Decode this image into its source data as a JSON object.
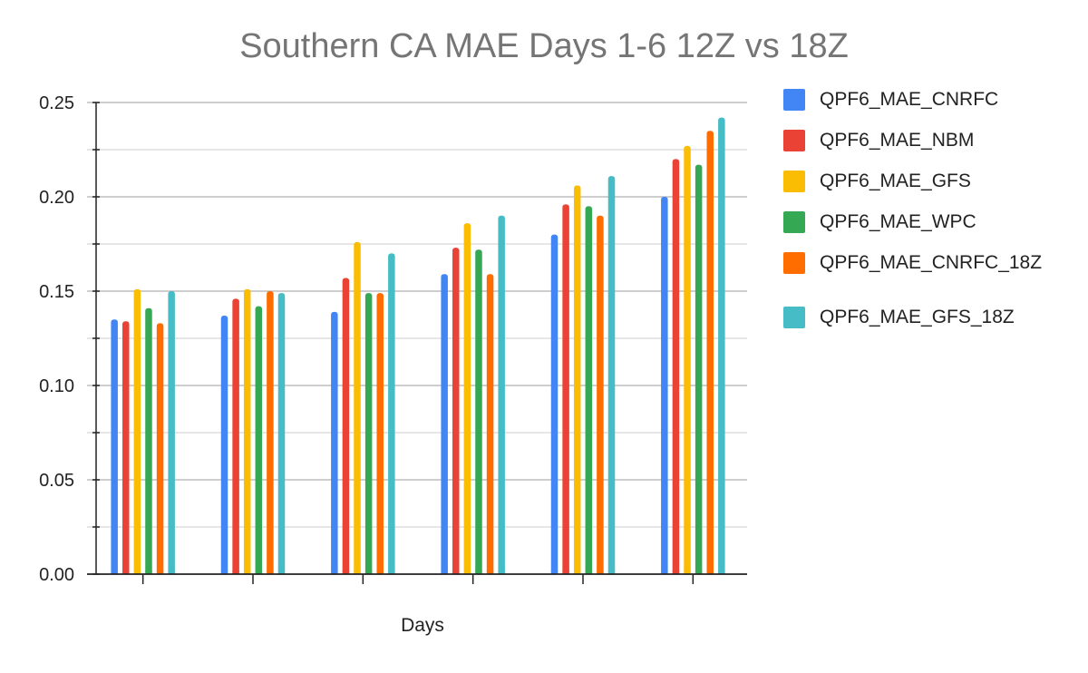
{
  "chart_data": {
    "type": "bar",
    "title": "Southern CA MAE Days 1-6 12Z vs 18Z",
    "xlabel": "Days",
    "ylabel": "",
    "ylim": [
      0,
      0.25
    ],
    "yticks": [
      "0.00",
      "0.05",
      "0.10",
      "0.15",
      "0.20",
      "0.25"
    ],
    "categories": [
      "",
      "",
      "",
      "",
      "",
      ""
    ],
    "grid": true,
    "legend_position": "right",
    "series": [
      {
        "name": "QPF6_MAE_CNRFC",
        "color": "#4285f4",
        "values": [
          0.135,
          0.137,
          0.139,
          0.159,
          0.18,
          0.2
        ]
      },
      {
        "name": "QPF6_MAE_NBM",
        "color": "#ea4335",
        "values": [
          0.134,
          0.146,
          0.157,
          0.173,
          0.196,
          0.22
        ]
      },
      {
        "name": "QPF6_MAE_GFS",
        "color": "#fbbc04",
        "values": [
          0.151,
          0.151,
          0.176,
          0.186,
          0.206,
          0.227
        ]
      },
      {
        "name": "QPF6_MAE_WPC",
        "color": "#34a853",
        "values": [
          0.141,
          0.142,
          0.149,
          0.172,
          0.195,
          0.217
        ]
      },
      {
        "name": "QPF6_MAE_CNRFC_18Z",
        "color": "#ff6d01",
        "values": [
          0.133,
          0.15,
          0.149,
          0.159,
          0.19,
          0.235
        ]
      },
      {
        "name": "QPF6_MAE_GFS_18Z",
        "color": "#46bdc6",
        "values": [
          0.15,
          0.149,
          0.17,
          0.19,
          0.211,
          0.242
        ]
      }
    ]
  }
}
